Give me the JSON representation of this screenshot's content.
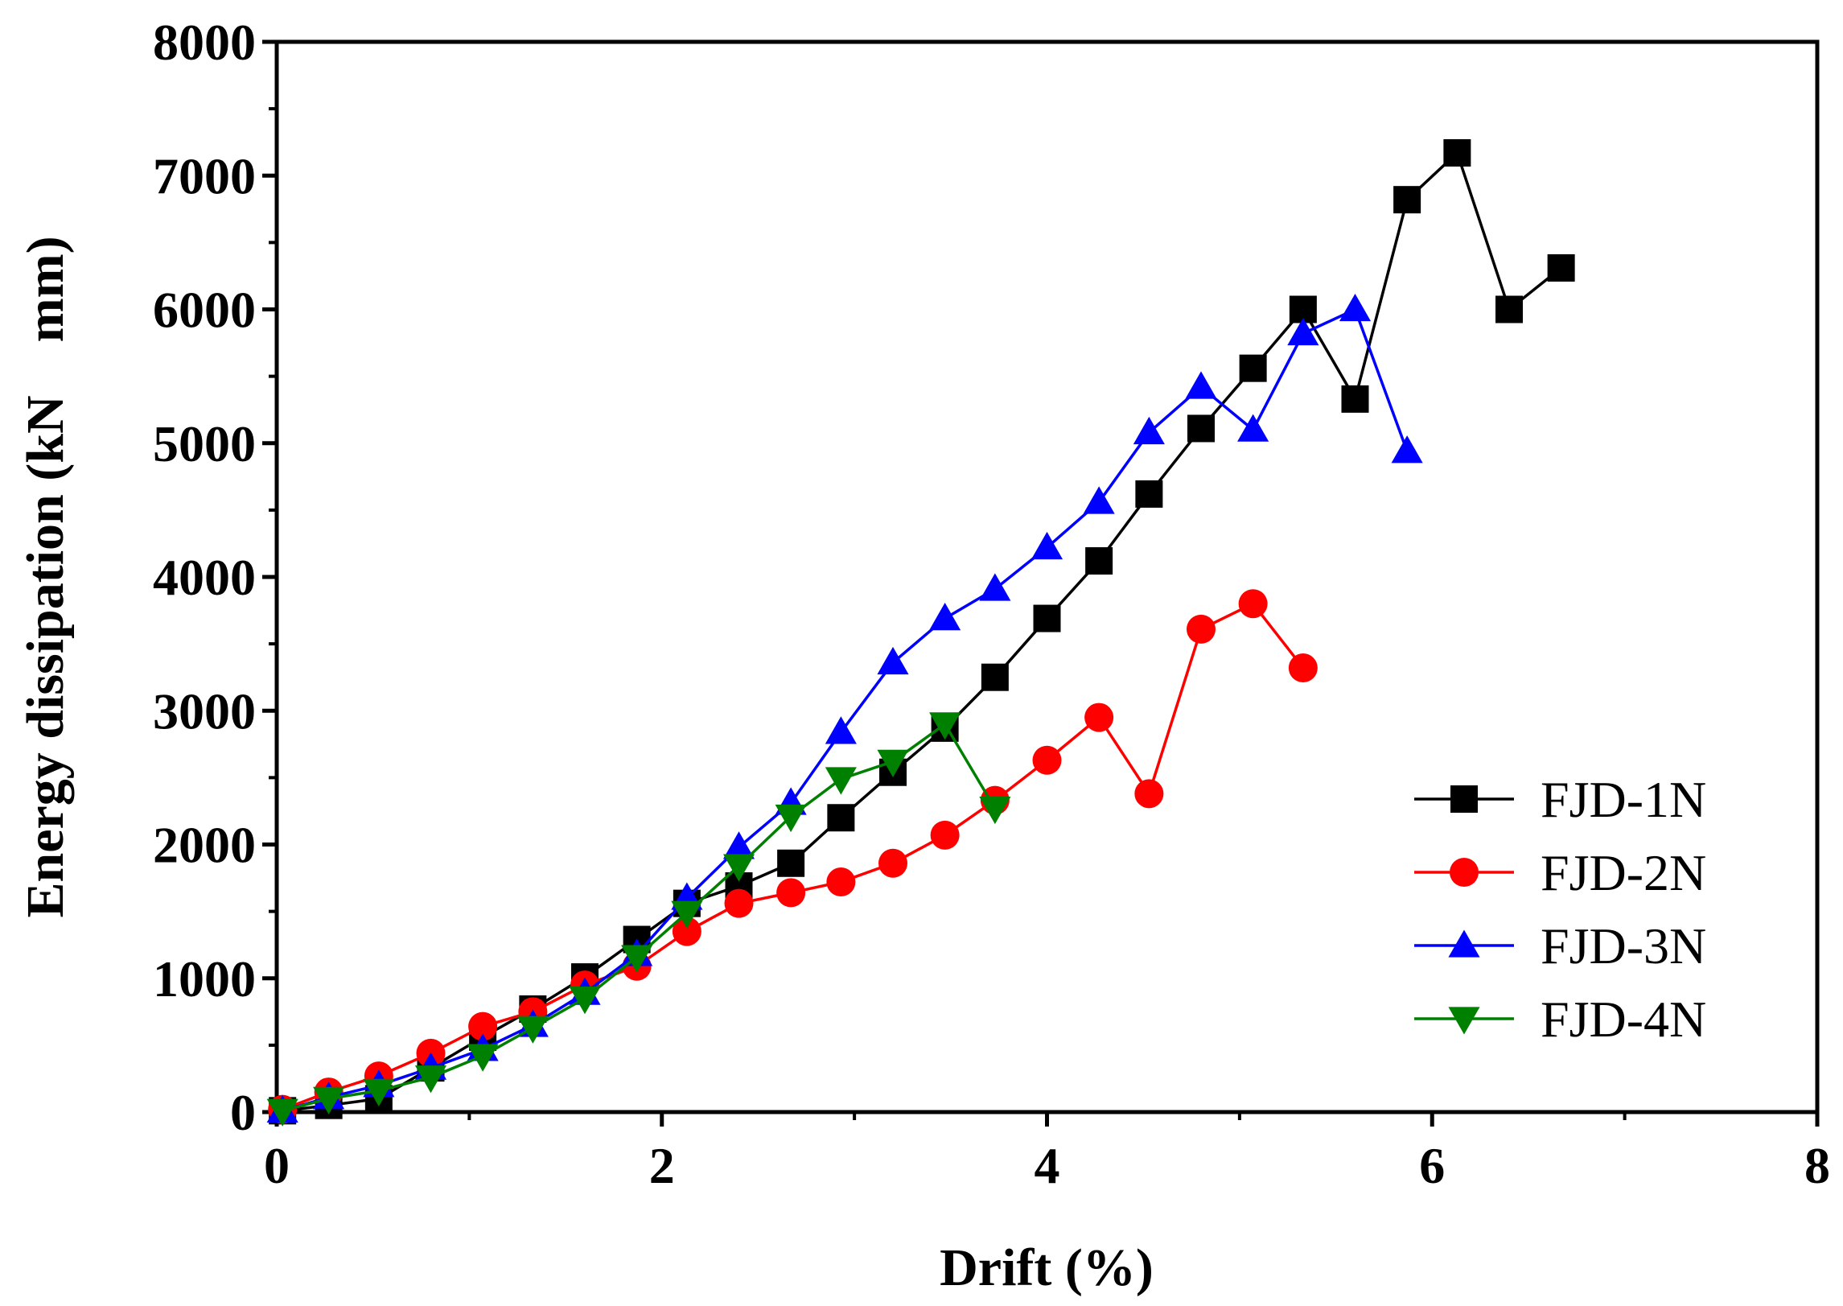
{
  "chart_data": {
    "type": "line",
    "title": "",
    "xlabel": "Drift (%)",
    "ylabel": "Energy dissipation (kN    mm)",
    "xlim": [
      0,
      8
    ],
    "ylim": [
      0,
      8000
    ],
    "xticks": [
      0,
      2,
      4,
      6,
      8
    ],
    "yticks": [
      0,
      1000,
      2000,
      3000,
      4000,
      5000,
      6000,
      7000,
      8000
    ],
    "grid": false,
    "legend_position": "bottom-right",
    "series": [
      {
        "name": "FJD-1N",
        "color": "#000000",
        "marker": "square",
        "x": [
          0.03,
          0.27,
          0.53,
          0.8,
          1.07,
          1.33,
          1.6,
          1.87,
          2.13,
          2.4,
          2.67,
          2.93,
          3.2,
          3.47,
          3.73,
          4.0,
          4.27,
          4.53,
          4.8,
          5.07,
          5.33,
          5.6,
          5.87,
          6.13,
          6.4,
          6.67
        ],
        "y": [
          10,
          50,
          100,
          330,
          560,
          770,
          1010,
          1290,
          1560,
          1690,
          1860,
          2200,
          2540,
          2870,
          3250,
          3690,
          4120,
          4620,
          5110,
          5560,
          6000,
          5330,
          6820,
          7170,
          6000,
          6310
        ]
      },
      {
        "name": "FJD-2N",
        "color": "#ff0000",
        "marker": "circle",
        "x": [
          0.03,
          0.27,
          0.53,
          0.8,
          1.07,
          1.33,
          1.6,
          1.87,
          2.13,
          2.4,
          2.67,
          2.93,
          3.2,
          3.47,
          3.73,
          4.0,
          4.27,
          4.53,
          4.8,
          5.07,
          5.33
        ],
        "y": [
          20,
          150,
          270,
          440,
          640,
          750,
          950,
          1090,
          1350,
          1560,
          1640,
          1720,
          1860,
          2070,
          2330,
          2630,
          2950,
          2380,
          3610,
          3800,
          3320
        ]
      },
      {
        "name": "FJD-3N",
        "color": "#0000ff",
        "marker": "triangle-up",
        "x": [
          0.03,
          0.27,
          0.53,
          0.8,
          1.07,
          1.33,
          1.6,
          1.87,
          2.13,
          2.4,
          2.67,
          2.93,
          3.2,
          3.47,
          3.73,
          4.0,
          4.27,
          4.53,
          4.8,
          5.07,
          5.33,
          5.6,
          5.87
        ],
        "y": [
          10,
          110,
          200,
          330,
          470,
          650,
          890,
          1180,
          1600,
          1980,
          2310,
          2840,
          3360,
          3690,
          3910,
          4220,
          4560,
          5080,
          5420,
          5100,
          5820,
          6000,
          4940
        ]
      },
      {
        "name": "FJD-4N",
        "color": "#008000",
        "marker": "triangle-down",
        "x": [
          0.03,
          0.27,
          0.53,
          0.8,
          1.07,
          1.33,
          1.6,
          1.87,
          2.13,
          2.4,
          2.67,
          2.93,
          3.2,
          3.47,
          3.73
        ],
        "y": [
          10,
          100,
          160,
          260,
          420,
          630,
          850,
          1160,
          1490,
          1840,
          2210,
          2490,
          2620,
          2900,
          2270
        ]
      }
    ]
  }
}
